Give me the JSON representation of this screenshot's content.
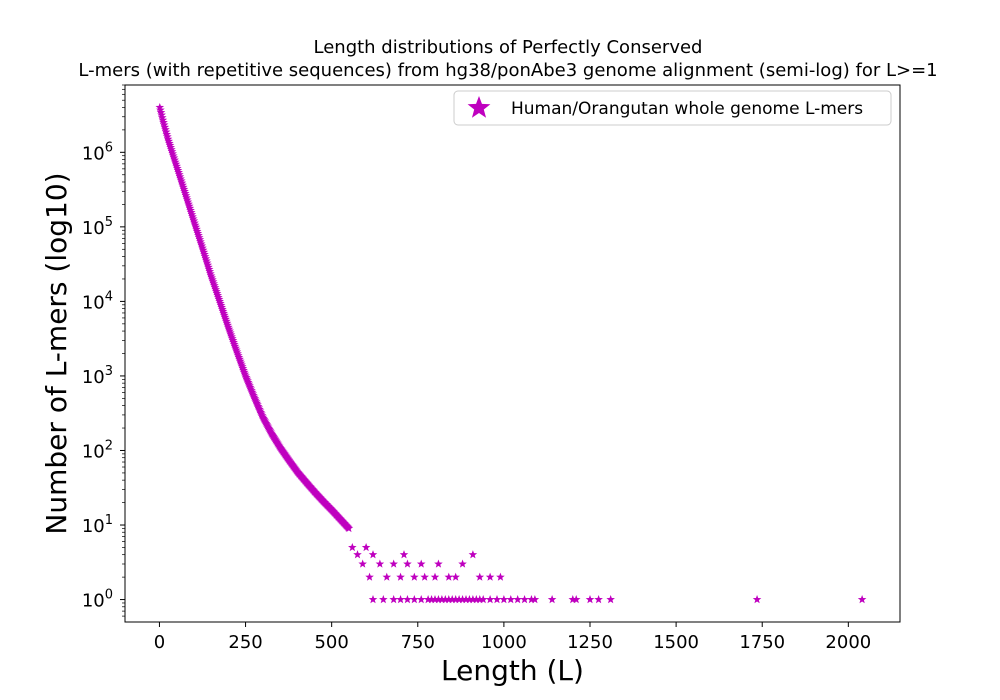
{
  "chart_data": {
    "type": "scatter",
    "title_line1": "Length distributions of Perfectly Conserved",
    "title_line2": "L-mers (with repetitive sequences) from hg38/ponAbe3 genome alignment (semi-log) for L>=1",
    "xlabel": "Length (L)",
    "ylabel": "Number of L-mers (log10)",
    "xlim": [
      -100,
      2150
    ],
    "ylim": [
      0.5,
      8000000
    ],
    "y_scale": "log",
    "x_ticks": [
      0,
      250,
      500,
      750,
      1000,
      1250,
      1500,
      1750,
      2000
    ],
    "y_ticks": [
      1,
      10,
      100,
      1000,
      10000,
      100000,
      1000000
    ],
    "y_tick_labels": [
      "10^0",
      "10^1",
      "10^2",
      "10^3",
      "10^4",
      "10^5",
      "10^6"
    ],
    "grid": false,
    "legend_position": "top-right",
    "color": "#bf00bf",
    "marker": "star",
    "series": [
      {
        "name": "Human/Orangutan whole genome L-mers",
        "curve_points": [
          {
            "x": 1,
            "y": 4000000
          },
          {
            "x": 10,
            "y": 2700000
          },
          {
            "x": 25,
            "y": 1500000
          },
          {
            "x": 50,
            "y": 650000
          },
          {
            "x": 75,
            "y": 280000
          },
          {
            "x": 100,
            "y": 120000
          },
          {
            "x": 125,
            "y": 52000
          },
          {
            "x": 150,
            "y": 22000
          },
          {
            "x": 175,
            "y": 10000
          },
          {
            "x": 200,
            "y": 4500
          },
          {
            "x": 225,
            "y": 2100
          },
          {
            "x": 250,
            "y": 1000
          },
          {
            "x": 275,
            "y": 520
          },
          {
            "x": 300,
            "y": 280
          },
          {
            "x": 325,
            "y": 170
          },
          {
            "x": 350,
            "y": 110
          },
          {
            "x": 375,
            "y": 75
          },
          {
            "x": 400,
            "y": 52
          },
          {
            "x": 425,
            "y": 38
          },
          {
            "x": 450,
            "y": 28
          },
          {
            "x": 475,
            "y": 21
          },
          {
            "x": 500,
            "y": 16
          },
          {
            "x": 525,
            "y": 12
          },
          {
            "x": 550,
            "y": 9
          }
        ],
        "tail_points": [
          {
            "x": 560,
            "y": 5
          },
          {
            "x": 575,
            "y": 4
          },
          {
            "x": 590,
            "y": 3
          },
          {
            "x": 600,
            "y": 5
          },
          {
            "x": 610,
            "y": 2
          },
          {
            "x": 620,
            "y": 4
          },
          {
            "x": 640,
            "y": 3
          },
          {
            "x": 660,
            "y": 2
          },
          {
            "x": 680,
            "y": 3
          },
          {
            "x": 700,
            "y": 2
          },
          {
            "x": 710,
            "y": 4
          },
          {
            "x": 720,
            "y": 3
          },
          {
            "x": 740,
            "y": 2
          },
          {
            "x": 760,
            "y": 3
          },
          {
            "x": 770,
            "y": 2
          },
          {
            "x": 800,
            "y": 2
          },
          {
            "x": 810,
            "y": 3
          },
          {
            "x": 840,
            "y": 2
          },
          {
            "x": 860,
            "y": 2
          },
          {
            "x": 880,
            "y": 3
          },
          {
            "x": 910,
            "y": 4
          },
          {
            "x": 930,
            "y": 2
          },
          {
            "x": 960,
            "y": 2
          },
          {
            "x": 990,
            "y": 2
          },
          {
            "x": 620,
            "y": 1
          },
          {
            "x": 650,
            "y": 1
          },
          {
            "x": 680,
            "y": 1
          },
          {
            "x": 700,
            "y": 1
          },
          {
            "x": 720,
            "y": 1
          },
          {
            "x": 740,
            "y": 1
          },
          {
            "x": 760,
            "y": 1
          },
          {
            "x": 780,
            "y": 1
          },
          {
            "x": 790,
            "y": 1
          },
          {
            "x": 800,
            "y": 1
          },
          {
            "x": 810,
            "y": 1
          },
          {
            "x": 820,
            "y": 1
          },
          {
            "x": 830,
            "y": 1
          },
          {
            "x": 840,
            "y": 1
          },
          {
            "x": 850,
            "y": 1
          },
          {
            "x": 860,
            "y": 1
          },
          {
            "x": 870,
            "y": 1
          },
          {
            "x": 880,
            "y": 1
          },
          {
            "x": 890,
            "y": 1
          },
          {
            "x": 900,
            "y": 1
          },
          {
            "x": 910,
            "y": 1
          },
          {
            "x": 920,
            "y": 1
          },
          {
            "x": 930,
            "y": 1
          },
          {
            "x": 940,
            "y": 1
          },
          {
            "x": 960,
            "y": 1
          },
          {
            "x": 980,
            "y": 1
          },
          {
            "x": 1000,
            "y": 1
          },
          {
            "x": 1020,
            "y": 1
          },
          {
            "x": 1040,
            "y": 1
          },
          {
            "x": 1060,
            "y": 1
          },
          {
            "x": 1080,
            "y": 1
          },
          {
            "x": 1090,
            "y": 1
          },
          {
            "x": 1140,
            "y": 1
          },
          {
            "x": 1200,
            "y": 1
          },
          {
            "x": 1210,
            "y": 1
          },
          {
            "x": 1250,
            "y": 1
          },
          {
            "x": 1275,
            "y": 1
          },
          {
            "x": 1310,
            "y": 1
          },
          {
            "x": 1735,
            "y": 1
          },
          {
            "x": 2040,
            "y": 1
          }
        ]
      }
    ]
  }
}
